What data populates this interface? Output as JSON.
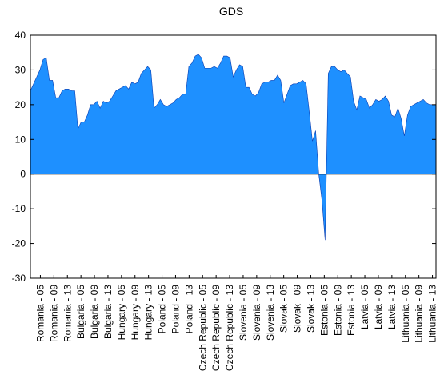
{
  "chart_data": {
    "type": "area",
    "title": "GDS",
    "xlabel": "",
    "ylabel": "",
    "ylim": [
      -30,
      40
    ],
    "yticks": [
      -30,
      -20,
      -10,
      0,
      10,
      20,
      30,
      40
    ],
    "grid": false,
    "legend": "none",
    "fill_color": "#1E90FF",
    "zero_line_color": "#000000",
    "x_tick_labels": [
      "Romania - 05",
      "Romania - 09",
      "Romania - 13",
      "Bulgaria - 05",
      "Bulgaria - 09",
      "Bulgaria - 13",
      "Hungary - 05",
      "Hungary - 09",
      "Hungary - 13",
      "Poland - 05",
      "Poland - 09",
      "Poland - 13",
      "Czech Republic - 05",
      "Czech Republic - 09",
      "Czech Republic - 13",
      "Slovenia - 05",
      "Slovenia - 09",
      "Slovenia - 13",
      "Slovak - 05",
      "Slovak - 09",
      "Slovak - 13",
      "Estonia - 05",
      "Estonia - 09",
      "Estonia - 13",
      "Latvia - 05",
      "Latvia - 09",
      "Latvia - 13",
      "Lithuania - 05",
      "Lithuania - 09",
      "Lithuania - 13"
    ],
    "series": [
      {
        "values": [
          24,
          26,
          28,
          30,
          33,
          33.5,
          27,
          27,
          22,
          22,
          24,
          24.5,
          24.5,
          24,
          24,
          13,
          15,
          15,
          17,
          20,
          20,
          21,
          19,
          21,
          20.5,
          21,
          22.5,
          24,
          24.5,
          25,
          25.5,
          24.5,
          26.5,
          26,
          26.5,
          29,
          30,
          31,
          30,
          19,
          20,
          21.5,
          20,
          19.5,
          20,
          20.5,
          21.5,
          22,
          23,
          23,
          31,
          32,
          34,
          34.5,
          33.5,
          30.5,
          30.5,
          30.5,
          31,
          30.5,
          32,
          34,
          34,
          33.5,
          28,
          30,
          31.5,
          31,
          25,
          25,
          23,
          22.5,
          23.5,
          26,
          26.5,
          26.5,
          27,
          27,
          28.5,
          27,
          20.5,
          23,
          25.5,
          26,
          26,
          26.5,
          27,
          26,
          18,
          9.5,
          12.5,
          0,
          -7.5,
          -19,
          29,
          31,
          31,
          30,
          29.5,
          30,
          29,
          28,
          21,
          18.5,
          22.5,
          22,
          21.5,
          19,
          20,
          21.5,
          21,
          21.5,
          22.5,
          21,
          17,
          16.5,
          19,
          16,
          11,
          17,
          19.5,
          20,
          20.5,
          21,
          21.5,
          20.5,
          20,
          20,
          20
        ]
      }
    ]
  }
}
